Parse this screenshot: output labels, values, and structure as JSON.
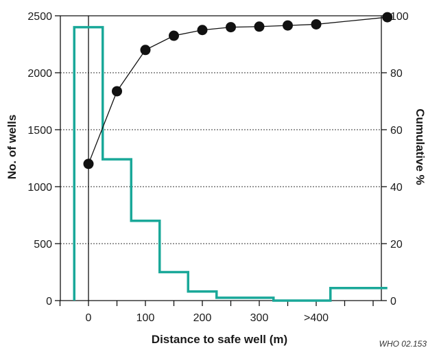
{
  "chart_data": {
    "type": "bar",
    "xlabel": "Distance to safe well (m)",
    "ylabel": "No. of wells",
    "y2label": "Cumulative %",
    "credit": "WHO 02.153",
    "x_tick_labels": [
      "0",
      "100",
      "200",
      "300",
      ">400"
    ],
    "ylim": [
      0,
      2500
    ],
    "y_ticks": [
      0,
      500,
      1000,
      1500,
      2000,
      2500
    ],
    "y2lim": [
      0,
      100
    ],
    "y2_ticks": [
      0,
      20,
      40,
      60,
      80,
      100
    ],
    "grid": "horizontal dotted at right-axis ticks",
    "series": [
      {
        "kind": "histogram-step",
        "axis": "left",
        "color": "#1aa899",
        "bins": [
          {
            "from": -25,
            "to": 25,
            "value": 2400
          },
          {
            "from": 25,
            "to": 75,
            "value": 1240
          },
          {
            "from": 75,
            "to": 125,
            "value": 700
          },
          {
            "from": 125,
            "to": 175,
            "value": 250
          },
          {
            "from": 175,
            "to": 225,
            "value": 80
          },
          {
            "from": 225,
            "to": 325,
            "value": 25
          },
          {
            "from": 325,
            "to": 425,
            "value": 0
          },
          {
            "from": 425,
            "to": 525,
            "value": 110
          }
        ]
      },
      {
        "kind": "line-markers",
        "axis": "right",
        "color": "#111111",
        "points": [
          {
            "x": 0,
            "y": 48
          },
          {
            "x": 50,
            "y": 73.5
          },
          {
            "x": 100,
            "y": 88
          },
          {
            "x": 150,
            "y": 93
          },
          {
            "x": 200,
            "y": 95
          },
          {
            "x": 250,
            "y": 96
          },
          {
            "x": 300,
            "y": 96.2
          },
          {
            "x": 350,
            "y": 96.6
          },
          {
            "x": 400,
            "y": 97
          },
          {
            "x": 525,
            "y": 99.5
          }
        ]
      }
    ]
  }
}
